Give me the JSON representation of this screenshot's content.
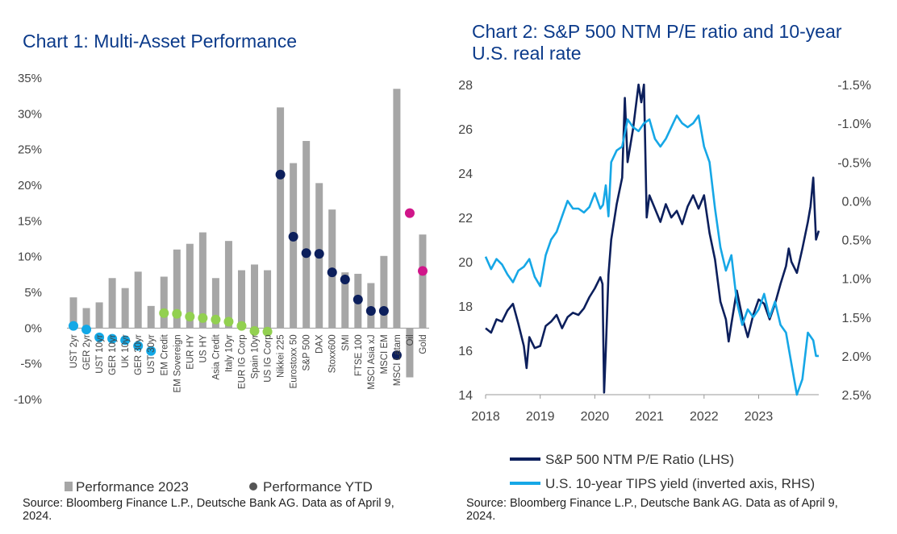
{
  "colors": {
    "title": "#0b3a8a",
    "bar": "#a6a6a6",
    "navy": "#0c1f5c",
    "light_blue": "#13a8e6",
    "green": "#92d050",
    "magenta": "#d0168a",
    "line_navy": "#0c1f5c",
    "line_blue": "#16a7e6"
  },
  "chart1": {
    "source": "Source: Bloomberg Finance L.P., Deutsche Bank AG. Data as of April 9, 2024."
  },
  "chart2": {
    "source": "Source: Bloomberg Finance L.P., Deutsche Bank AG. Data as of April 9, 2024."
  },
  "chart_data": [
    {
      "type": "bar",
      "title": "Chart 1: Multi-Asset Performance",
      "categories": [
        "UST 2yr",
        "GER 2yr",
        "UST 10yr",
        "GER 10yr",
        "UK 10yr",
        "GER 30yr",
        "UST 30yr",
        "EM Credit",
        "EM Sovereign",
        "EUR HY",
        "US HY",
        "Asia Credit",
        "Italy 10yr",
        "EUR IG Corp",
        "Spain 10yr",
        "US IG Corp",
        "Nikkei 225",
        "Eurostoxx 50",
        "S&P 500",
        "DAX",
        "Stoxx600",
        "SMI",
        "FTSE 100",
        "MSCI Asia xJ",
        "MSCI EM",
        "MSCI Latam",
        "Oil",
        "Gold"
      ],
      "ylim": [
        -10,
        35
      ],
      "yticks": [
        -10,
        -5,
        0,
        5,
        10,
        15,
        20,
        25,
        30,
        35
      ],
      "ytick_labels": [
        "-10%",
        "-5%",
        "0%",
        "5%",
        "10%",
        "15%",
        "20%",
        "25%",
        "30%",
        "35%"
      ],
      "series": [
        {
          "name": "Performance 2023",
          "kind": "bar",
          "values": [
            4.3,
            2.8,
            3.6,
            7.0,
            5.6,
            7.9,
            3.1,
            7.2,
            11.0,
            11.8,
            13.4,
            7.0,
            12.2,
            8.1,
            8.9,
            8.1,
            30.9,
            23.1,
            26.2,
            20.3,
            16.6,
            7.8,
            7.6,
            6.3,
            10.1,
            33.5,
            -6.9,
            13.1
          ]
        },
        {
          "name": "Performance YTD",
          "kind": "dot",
          "values": [
            0.3,
            -0.2,
            -1.3,
            -1.5,
            -1.7,
            -2.5,
            -3.2,
            2.1,
            2.0,
            1.6,
            1.4,
            1.2,
            0.9,
            0.3,
            -0.4,
            -0.5,
            21.5,
            12.8,
            10.5,
            10.4,
            7.8,
            6.8,
            4.0,
            2.4,
            2.4,
            -3.8,
            16.1,
            8.0
          ],
          "dot_colors": [
            "light_blue",
            "light_blue",
            "light_blue",
            "light_blue",
            "light_blue",
            "light_blue",
            "light_blue",
            "green",
            "green",
            "green",
            "green",
            "green",
            "green",
            "green",
            "green",
            "green",
            "navy",
            "navy",
            "navy",
            "navy",
            "navy",
            "navy",
            "navy",
            "navy",
            "navy",
            "navy",
            "magenta",
            "magenta"
          ]
        }
      ],
      "legend": [
        "Performance 2023",
        "Performance YTD"
      ],
      "legend_position": "bottom"
    },
    {
      "type": "line",
      "title": "Chart 2: S&P 500 NTM P/E ratio and 10-year U.S. real rate",
      "x_ticks": [
        2018,
        2019,
        2020,
        2021,
        2022,
        2023
      ],
      "xlim": [
        2018,
        2024.1
      ],
      "ylim_left": [
        14,
        28
      ],
      "yticks_left": [
        14,
        16,
        18,
        20,
        22,
        24,
        26,
        28
      ],
      "ylim_right_inverted": [
        2.5,
        -1.5
      ],
      "yticks_right": [
        2.5,
        2.0,
        1.5,
        1.0,
        0.5,
        0.0,
        -0.5,
        -1.0,
        -1.5
      ],
      "ytick_labels_right": [
        "2.5%",
        "2.0%",
        "1.5%",
        "1.0%",
        "0.5%",
        "0.0%",
        "-0.5%",
        "-1.0%",
        "-1.5%"
      ],
      "series": [
        {
          "name": "S&P 500 NTM P/E Ratio (LHS)",
          "axis": "left",
          "color": "line_navy",
          "x": [
            2018.0,
            2018.1,
            2018.2,
            2018.3,
            2018.4,
            2018.5,
            2018.6,
            2018.7,
            2018.75,
            2018.8,
            2018.9,
            2019.0,
            2019.1,
            2019.2,
            2019.3,
            2019.4,
            2019.5,
            2019.6,
            2019.7,
            2019.8,
            2019.9,
            2020.0,
            2020.1,
            2020.14,
            2020.17,
            2020.2,
            2020.25,
            2020.3,
            2020.4,
            2020.5,
            2020.55,
            2020.6,
            2020.7,
            2020.8,
            2020.85,
            2020.9,
            2020.95,
            2021.0,
            2021.1,
            2021.2,
            2021.3,
            2021.4,
            2021.5,
            2021.6,
            2021.7,
            2021.8,
            2021.9,
            2022.0,
            2022.1,
            2022.2,
            2022.3,
            2022.4,
            2022.45,
            2022.5,
            2022.6,
            2022.7,
            2022.8,
            2022.9,
            2023.0,
            2023.1,
            2023.2,
            2023.3,
            2023.4,
            2023.5,
            2023.55,
            2023.6,
            2023.7,
            2023.8,
            2023.9,
            2023.95,
            2024.0,
            2024.05,
            2024.1
          ],
          "y": [
            17.0,
            16.8,
            17.4,
            17.3,
            17.8,
            18.1,
            17.2,
            16.2,
            15.2,
            16.6,
            16.1,
            16.2,
            17.1,
            17.3,
            17.6,
            17.0,
            17.5,
            17.7,
            17.6,
            17.9,
            18.4,
            18.8,
            19.3,
            19.0,
            14.1,
            16.0,
            19.4,
            21.0,
            22.6,
            23.8,
            27.4,
            24.5,
            26.0,
            28.0,
            27.2,
            28.0,
            22.0,
            23.0,
            22.4,
            21.8,
            22.6,
            22.0,
            22.3,
            21.7,
            22.5,
            23.0,
            22.4,
            23.0,
            21.3,
            20.1,
            18.2,
            17.4,
            16.4,
            17.2,
            18.7,
            17.5,
            16.6,
            17.6,
            18.3,
            18.1,
            17.4,
            18.1,
            19.0,
            19.8,
            20.6,
            20.0,
            19.5,
            20.6,
            21.8,
            22.5,
            23.8,
            21.0,
            21.4
          ]
        },
        {
          "name": "U.S. 10-year TIPS yield (inverted axis, RHS)",
          "axis": "right",
          "color": "line_blue",
          "x": [
            2018.0,
            2018.1,
            2018.2,
            2018.3,
            2018.4,
            2018.5,
            2018.6,
            2018.7,
            2018.8,
            2018.9,
            2019.0,
            2019.1,
            2019.2,
            2019.3,
            2019.4,
            2019.5,
            2019.6,
            2019.7,
            2019.8,
            2019.9,
            2020.0,
            2020.1,
            2020.15,
            2020.2,
            2020.25,
            2020.3,
            2020.4,
            2020.5,
            2020.6,
            2020.7,
            2020.8,
            2020.9,
            2021.0,
            2021.1,
            2021.2,
            2021.3,
            2021.4,
            2021.5,
            2021.6,
            2021.7,
            2021.8,
            2021.9,
            2022.0,
            2022.1,
            2022.2,
            2022.3,
            2022.4,
            2022.5,
            2022.6,
            2022.7,
            2022.8,
            2022.9,
            2023.0,
            2023.1,
            2023.2,
            2023.3,
            2023.4,
            2023.5,
            2023.6,
            2023.7,
            2023.8,
            2023.9,
            2024.0,
            2024.05,
            2024.1
          ],
          "y": [
            0.72,
            0.88,
            0.75,
            0.82,
            0.95,
            1.05,
            0.9,
            0.85,
            0.75,
            0.98,
            1.1,
            0.7,
            0.5,
            0.4,
            0.2,
            0.0,
            0.1,
            0.1,
            0.15,
            0.08,
            -0.1,
            0.1,
            0.05,
            -0.2,
            0.2,
            -0.5,
            -0.65,
            -0.7,
            -1.05,
            -0.95,
            -0.9,
            -1.0,
            -1.05,
            -0.8,
            -0.7,
            -0.8,
            -0.95,
            -1.1,
            -1.0,
            -0.95,
            -1.0,
            -1.1,
            -0.7,
            -0.5,
            0.1,
            0.6,
            0.9,
            0.7,
            1.3,
            1.6,
            1.4,
            1.5,
            1.4,
            1.2,
            1.5,
            1.3,
            1.6,
            1.7,
            2.1,
            2.5,
            2.3,
            1.7,
            1.8,
            2.0,
            2.0
          ]
        }
      ],
      "legend": [
        "S&P 500 NTM P/E Ratio (LHS)",
        "U.S. 10-year TIPS yield (inverted axis, RHS)"
      ],
      "legend_position": "bottom"
    }
  ]
}
